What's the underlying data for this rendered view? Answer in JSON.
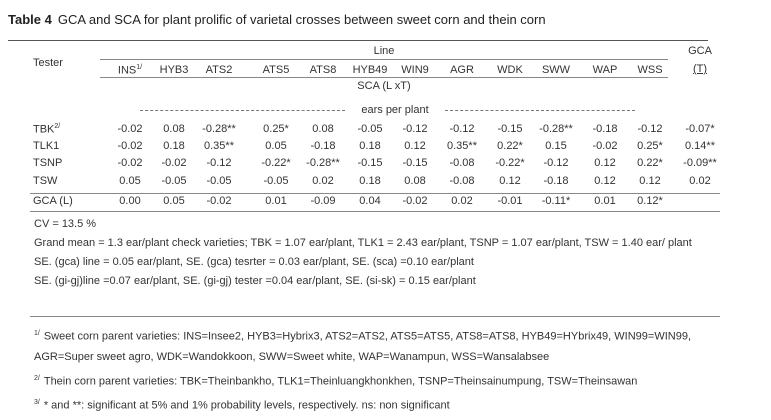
{
  "title": {
    "label": "Table 4",
    "text": "GCA and SCA for plant prolific of varietal crosses between sweet corn and thein corn"
  },
  "table": {
    "tester_header": "Tester",
    "line_header": "Line",
    "gca_header": "GCA",
    "gca_sub": "(T)",
    "sca_header": "SCA (L xT)",
    "unit": "ears per plant",
    "columns": [
      {
        "name": "INS",
        "note": "1/"
      },
      "HYB3",
      "ATS2",
      "ATS5",
      "ATS8",
      "HYB49",
      "WIN9",
      "AGR",
      "WDK",
      "SWW",
      "WAP",
      "WSS"
    ],
    "rows": [
      {
        "tester": {
          "name": "TBK",
          "note": "2/"
        },
        "cells": [
          "-0.02",
          "0.08",
          "-0.28**",
          "0.25*",
          "0.08",
          "-0.05",
          "-0.12",
          "-0.12",
          "-0.15",
          "-0.28**",
          "-0.18",
          "-0.12",
          "-0.07*"
        ]
      },
      {
        "tester": {
          "name": "TLK1"
        },
        "cells": [
          "-0.02",
          "0.18",
          "0.35**",
          "0.05",
          "-0.18",
          "0.18",
          "0.12",
          "0.35**",
          "0.22*",
          "0.15",
          "-0.02",
          "0.25*",
          "0.14**"
        ]
      },
      {
        "tester": {
          "name": "TSNP"
        },
        "cells": [
          "-0.02",
          "-0.02",
          "-0.12",
          "-0.22*",
          "-0.28**",
          "-0.15",
          "-0.15",
          "-0.08",
          "-0.22*",
          "-0.12",
          "0.12",
          "0.22*",
          "-0.09**"
        ]
      },
      {
        "tester": {
          "name": "TSW"
        },
        "cells": [
          "0.05",
          "-0.05",
          "-0.05",
          "-0.05",
          "0.02",
          "0.18",
          "0.08",
          "-0.08",
          "0.12",
          "-0.18",
          "0.12",
          "0.12",
          "0.02"
        ]
      },
      {
        "tester": {
          "name": "GCA (L)"
        },
        "cells": [
          "0.00",
          "0.05",
          "-0.02",
          "0.01",
          "-0.09",
          "0.04",
          "-0.02",
          "0.02",
          "-0.01",
          "-0.11*",
          "0.01",
          "0.12*"
        ]
      }
    ]
  },
  "notes": [
    "CV = 13.5 %",
    "Grand mean = 1.3 ear/plant check varieties; TBK = 1.07 ear/plant, TLK1 = 2.43 ear/plant, TSNP = 1.07 ear/plant,  TSW = 1.40 ear/ plant",
    "SE. (gca) line = 0.05 ear/plant, SE. (gca) tesrter = 0.03 ear/plant, SE. (sca) =0.10 ear/plant",
    "SE. (gi-gj)line =0.07 ear/plant, SE. (gi-gj) tester =0.04 ear/plant, SE. (si-sk) = 0.15 ear/plant"
  ],
  "footnotes": [
    {
      "mark": "1/",
      "text": "Sweet corn parent varieties: INS=Insee2, HYB3=Hybrix3, ATS2=ATS2, ATS5=ATS5, ATS8=ATS8, HYB49=HYbrix49, WIN99=WIN99, AGR=Super sweet agro, WDK=Wandokkoon, SWW=Sweet white, WAP=Wanampun, WSS=Wansalabsee"
    },
    {
      "mark": "2/",
      "text": "Thein corn parent varieties: TBK=Theinbankho, TLK1=Theinluangkhonkhen, TSNP=Theinsainumpung, TSW=Theinsawan"
    },
    {
      "mark": "3/",
      "text": "* and **: significant at 5% and 1% probability levels, respectively.    ns: non significant"
    }
  ]
}
